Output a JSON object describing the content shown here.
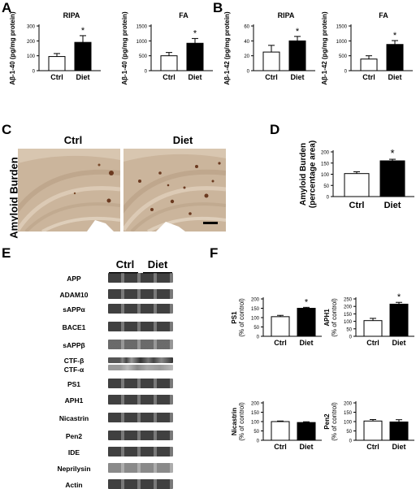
{
  "panels": {
    "A": "A",
    "B": "B",
    "C": "C",
    "D": "D",
    "E": "E",
    "F": "F"
  },
  "colors": {
    "ctrl_fill": "#ffffff",
    "diet_fill": "#000000",
    "tissue": "#c9b39b"
  },
  "charts": [
    {
      "id": "A1",
      "title": "RIPA",
      "ylabel": "Aβ-1-40 (pg/mg protein)",
      "yticks": [
        "0",
        "100",
        "200",
        "300"
      ],
      "ymax": 300,
      "categories": [
        "Ctrl",
        "Diet"
      ],
      "values": [
        95,
        190
      ],
      "errors": [
        20,
        45
      ],
      "sig": "*"
    },
    {
      "id": "A2",
      "title": "FA",
      "ylabel": "Aβ-1-40 (pg/mg protein)",
      "yticks": [
        "0",
        "500",
        "1000",
        "1500"
      ],
      "ymax": 1500,
      "categories": [
        "Ctrl",
        "Diet"
      ],
      "values": [
        500,
        920
      ],
      "errors": [
        110,
        160
      ],
      "sig": "*"
    },
    {
      "id": "B1",
      "title": "RIPA",
      "ylabel": "Aβ-1-42 (pg/mg protein)",
      "yticks": [
        "0",
        "20",
        "40",
        "60"
      ],
      "ymax": 60,
      "categories": [
        "Ctrl",
        "Diet"
      ],
      "values": [
        25,
        40
      ],
      "errors": [
        9,
        6
      ],
      "sig": "*"
    },
    {
      "id": "B2",
      "title": "FA",
      "ylabel": "Aβ-1-42 (pg/mg protein)",
      "yticks": [
        "0",
        "500",
        "1000",
        "1500"
      ],
      "ymax": 1500,
      "categories": [
        "Ctrl",
        "Diet"
      ],
      "values": [
        390,
        880
      ],
      "errors": [
        110,
        130
      ],
      "sig": "*"
    },
    {
      "id": "D",
      "title": "",
      "ylabel": "Amyloid Burden (percentage area)",
      "yticks": [
        "0",
        "50",
        "100",
        "150",
        "200"
      ],
      "ymax": 200,
      "categories": [
        "Ctrl",
        "Diet"
      ],
      "values": [
        103,
        160
      ],
      "errors": [
        8,
        7
      ],
      "sig": "*"
    },
    {
      "id": "F1",
      "title": "",
      "ylabel": "PS1 (% of control)",
      "yticks": [
        "0",
        "50",
        "100",
        "150",
        "200"
      ],
      "ymax": 200,
      "categories": [
        "Ctrl",
        "Diet"
      ],
      "values": [
        105,
        150
      ],
      "errors": [
        7,
        5
      ],
      "sig": "*"
    },
    {
      "id": "F2",
      "title": "",
      "ylabel": "APH1 (% of control)",
      "yticks": [
        "0",
        "50",
        "100",
        "150",
        "200",
        "250"
      ],
      "ymax": 250,
      "categories": [
        "Ctrl",
        "Diet"
      ],
      "values": [
        105,
        215
      ],
      "errors": [
        15,
        12
      ],
      "sig": "*"
    },
    {
      "id": "F3",
      "title": "",
      "ylabel": "Nicastrin (% of control)",
      "yticks": [
        "0",
        "50",
        "100",
        "150",
        "200"
      ],
      "ymax": 200,
      "categories": [
        "Ctrl",
        "Diet"
      ],
      "values": [
        100,
        95
      ],
      "errors": [
        3,
        4
      ],
      "sig": ""
    },
    {
      "id": "F4",
      "title": "",
      "ylabel": "Pen2 (% of control)",
      "yticks": [
        "0",
        "50",
        "100",
        "150",
        "200"
      ],
      "ymax": 200,
      "categories": [
        "Ctrl",
        "Diet"
      ],
      "values": [
        103,
        98
      ],
      "errors": [
        8,
        12
      ],
      "sig": ""
    }
  ],
  "panelC": {
    "ylabel": "Amyloid Burden",
    "ctrl": "Ctrl",
    "diet": "Diet"
  },
  "panelE": {
    "ctrl": "Ctrl",
    "diet": "Diet",
    "rows": [
      "APP",
      "ADAM10",
      "sAPPα",
      "BACE1",
      "sAPPβ",
      "CTF-β",
      "CTF-α",
      "PS1",
      "APH1",
      "Nicastrin",
      "Pen2",
      "IDE",
      "Neprilysin",
      "Actin"
    ]
  }
}
